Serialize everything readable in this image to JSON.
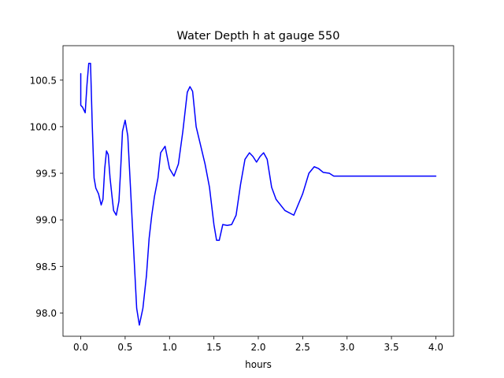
{
  "chart_data": {
    "type": "line",
    "title": "Water Depth h at gauge 550",
    "xlabel": "hours",
    "ylabel": "",
    "xlim": [
      -0.2,
      4.2
    ],
    "ylim": [
      97.75,
      100.87
    ],
    "xticks": [
      0.0,
      0.5,
      1.0,
      1.5,
      2.0,
      2.5,
      3.0,
      3.5,
      4.0
    ],
    "xtick_labels": [
      "0.0",
      "0.5",
      "1.0",
      "1.5",
      "2.0",
      "2.5",
      "3.0",
      "3.5",
      "4.0"
    ],
    "yticks": [
      98.0,
      98.5,
      99.0,
      99.5,
      100.0,
      100.5
    ],
    "ytick_labels": [
      "98.0",
      "98.5",
      "99.0",
      "99.5",
      "100.0",
      "100.5"
    ],
    "grid": false,
    "legend": "none",
    "series": [
      {
        "color": "#0000ff",
        "x": [
          0.0,
          0.0,
          0.02,
          0.05,
          0.07,
          0.09,
          0.11,
          0.13,
          0.15,
          0.17,
          0.2,
          0.23,
          0.25,
          0.27,
          0.29,
          0.31,
          0.33,
          0.35,
          0.37,
          0.4,
          0.43,
          0.45,
          0.47,
          0.5,
          0.53,
          0.56,
          0.6,
          0.63,
          0.66,
          0.7,
          0.74,
          0.77,
          0.8,
          0.83,
          0.87,
          0.9,
          0.95,
          1.0,
          1.05,
          1.1,
          1.15,
          1.2,
          1.23,
          1.26,
          1.3,
          1.35,
          1.4,
          1.45,
          1.5,
          1.53,
          1.56,
          1.6,
          1.65,
          1.7,
          1.75,
          1.8,
          1.85,
          1.9,
          1.94,
          1.98,
          2.02,
          2.06,
          2.1,
          2.15,
          2.2,
          2.3,
          2.4,
          2.5,
          2.57,
          2.63,
          2.68,
          2.73,
          2.8,
          2.85,
          2.9,
          2.95,
          3.0,
          3.1,
          3.2,
          3.28,
          3.35,
          3.45,
          3.55,
          3.65,
          3.72,
          3.78,
          3.85,
          3.95,
          4.0
        ],
        "y": [
          100.57,
          100.23,
          100.21,
          100.15,
          100.45,
          100.68,
          100.68,
          100.0,
          99.45,
          99.34,
          99.28,
          99.16,
          99.22,
          99.55,
          99.74,
          99.7,
          99.45,
          99.27,
          99.1,
          99.05,
          99.2,
          99.55,
          99.95,
          100.07,
          99.9,
          99.35,
          98.6,
          98.05,
          97.87,
          98.05,
          98.4,
          98.8,
          99.05,
          99.25,
          99.45,
          99.72,
          99.79,
          99.55,
          99.47,
          99.6,
          99.95,
          100.37,
          100.43,
          100.38,
          100.0,
          99.8,
          99.6,
          99.35,
          98.95,
          98.78,
          98.78,
          98.95,
          98.94,
          98.95,
          99.05,
          99.38,
          99.65,
          99.72,
          99.68,
          99.62,
          99.68,
          99.72,
          99.65,
          99.35,
          99.22,
          99.1,
          99.05,
          99.28,
          99.5,
          99.57,
          99.55,
          99.51,
          99.5,
          99.47,
          99.47,
          99.47,
          99.47,
          99.47,
          99.47,
          99.47,
          99.47,
          99.47,
          99.47,
          99.47,
          99.47,
          99.47,
          99.47,
          99.47,
          99.47
        ]
      }
    ]
  }
}
